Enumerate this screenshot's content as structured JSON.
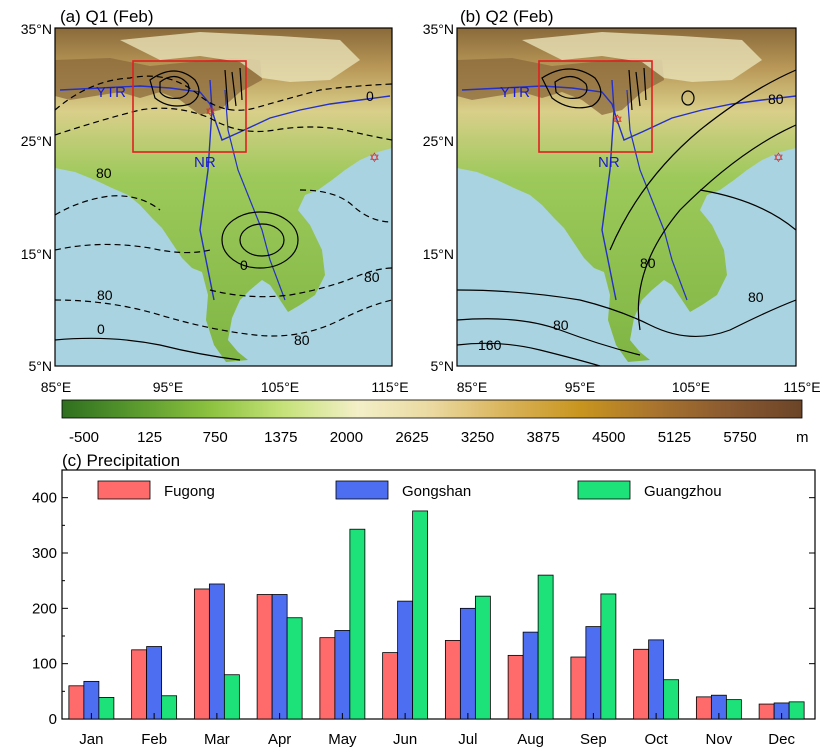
{
  "map_panels": [
    {
      "title": "(a) Q1 (Feb)",
      "x_ticks": [
        "85°E",
        "95°E",
        "105°E",
        "115°E"
      ],
      "y_ticks": [
        "35°N",
        "25°N",
        "15°N",
        "5°N"
      ],
      "labels": {
        "region_1": "YTR",
        "region_2": "NR"
      },
      "contour_labels": [
        "0",
        "80",
        "0",
        "80",
        "80",
        "0",
        "80"
      ]
    },
    {
      "title": "(b) Q2 (Feb)",
      "x_ticks": [
        "85°E",
        "95°E",
        "105°E",
        "115°E"
      ],
      "y_ticks": [
        "35°N",
        "25°N",
        "15°N",
        "5°N"
      ],
      "labels": {
        "region_1": "YTR",
        "region_2": "NR"
      },
      "contour_labels": [
        "80",
        "80",
        "80",
        "80",
        "160"
      ]
    }
  ],
  "colorbar": {
    "ticks": [
      "-500",
      "125",
      "750",
      "1375",
      "2000",
      "2625",
      "3250",
      "3875",
      "4500",
      "5125",
      "5750"
    ],
    "unit": "m",
    "colors": [
      "#2f6f1f",
      "#5a9a2e",
      "#8cc23f",
      "#c6e27a",
      "#f3efc8",
      "#ead9a0",
      "#d9b35a",
      "#c8951f",
      "#a9742e",
      "#8a5a30",
      "#6b4428"
    ]
  },
  "chart_data": {
    "type": "bar",
    "title": "(c) Precipitation",
    "categories": [
      "Jan",
      "Feb",
      "Mar",
      "Apr",
      "May",
      "Jun",
      "Jul",
      "Aug",
      "Sep",
      "Oct",
      "Nov",
      "Dec"
    ],
    "series": [
      {
        "name": "Fugong",
        "color": "#ff6b6b",
        "values": [
          60,
          125,
          235,
          225,
          147,
          120,
          142,
          115,
          112,
          126,
          40,
          27
        ]
      },
      {
        "name": "Gongshan",
        "color": "#4e6ef2",
        "values": [
          68,
          131,
          244,
          225,
          160,
          213,
          200,
          157,
          167,
          143,
          43,
          29
        ]
      },
      {
        "name": "Guangzhou",
        "color": "#1de27a",
        "values": [
          39,
          42,
          80,
          183,
          343,
          376,
          222,
          260,
          226,
          71,
          35,
          31
        ]
      }
    ],
    "ylim": [
      0,
      450
    ],
    "y_ticks": [
      0,
      100,
      200,
      300,
      400
    ],
    "xlabel": "",
    "ylabel": "",
    "legend_position": "top"
  }
}
